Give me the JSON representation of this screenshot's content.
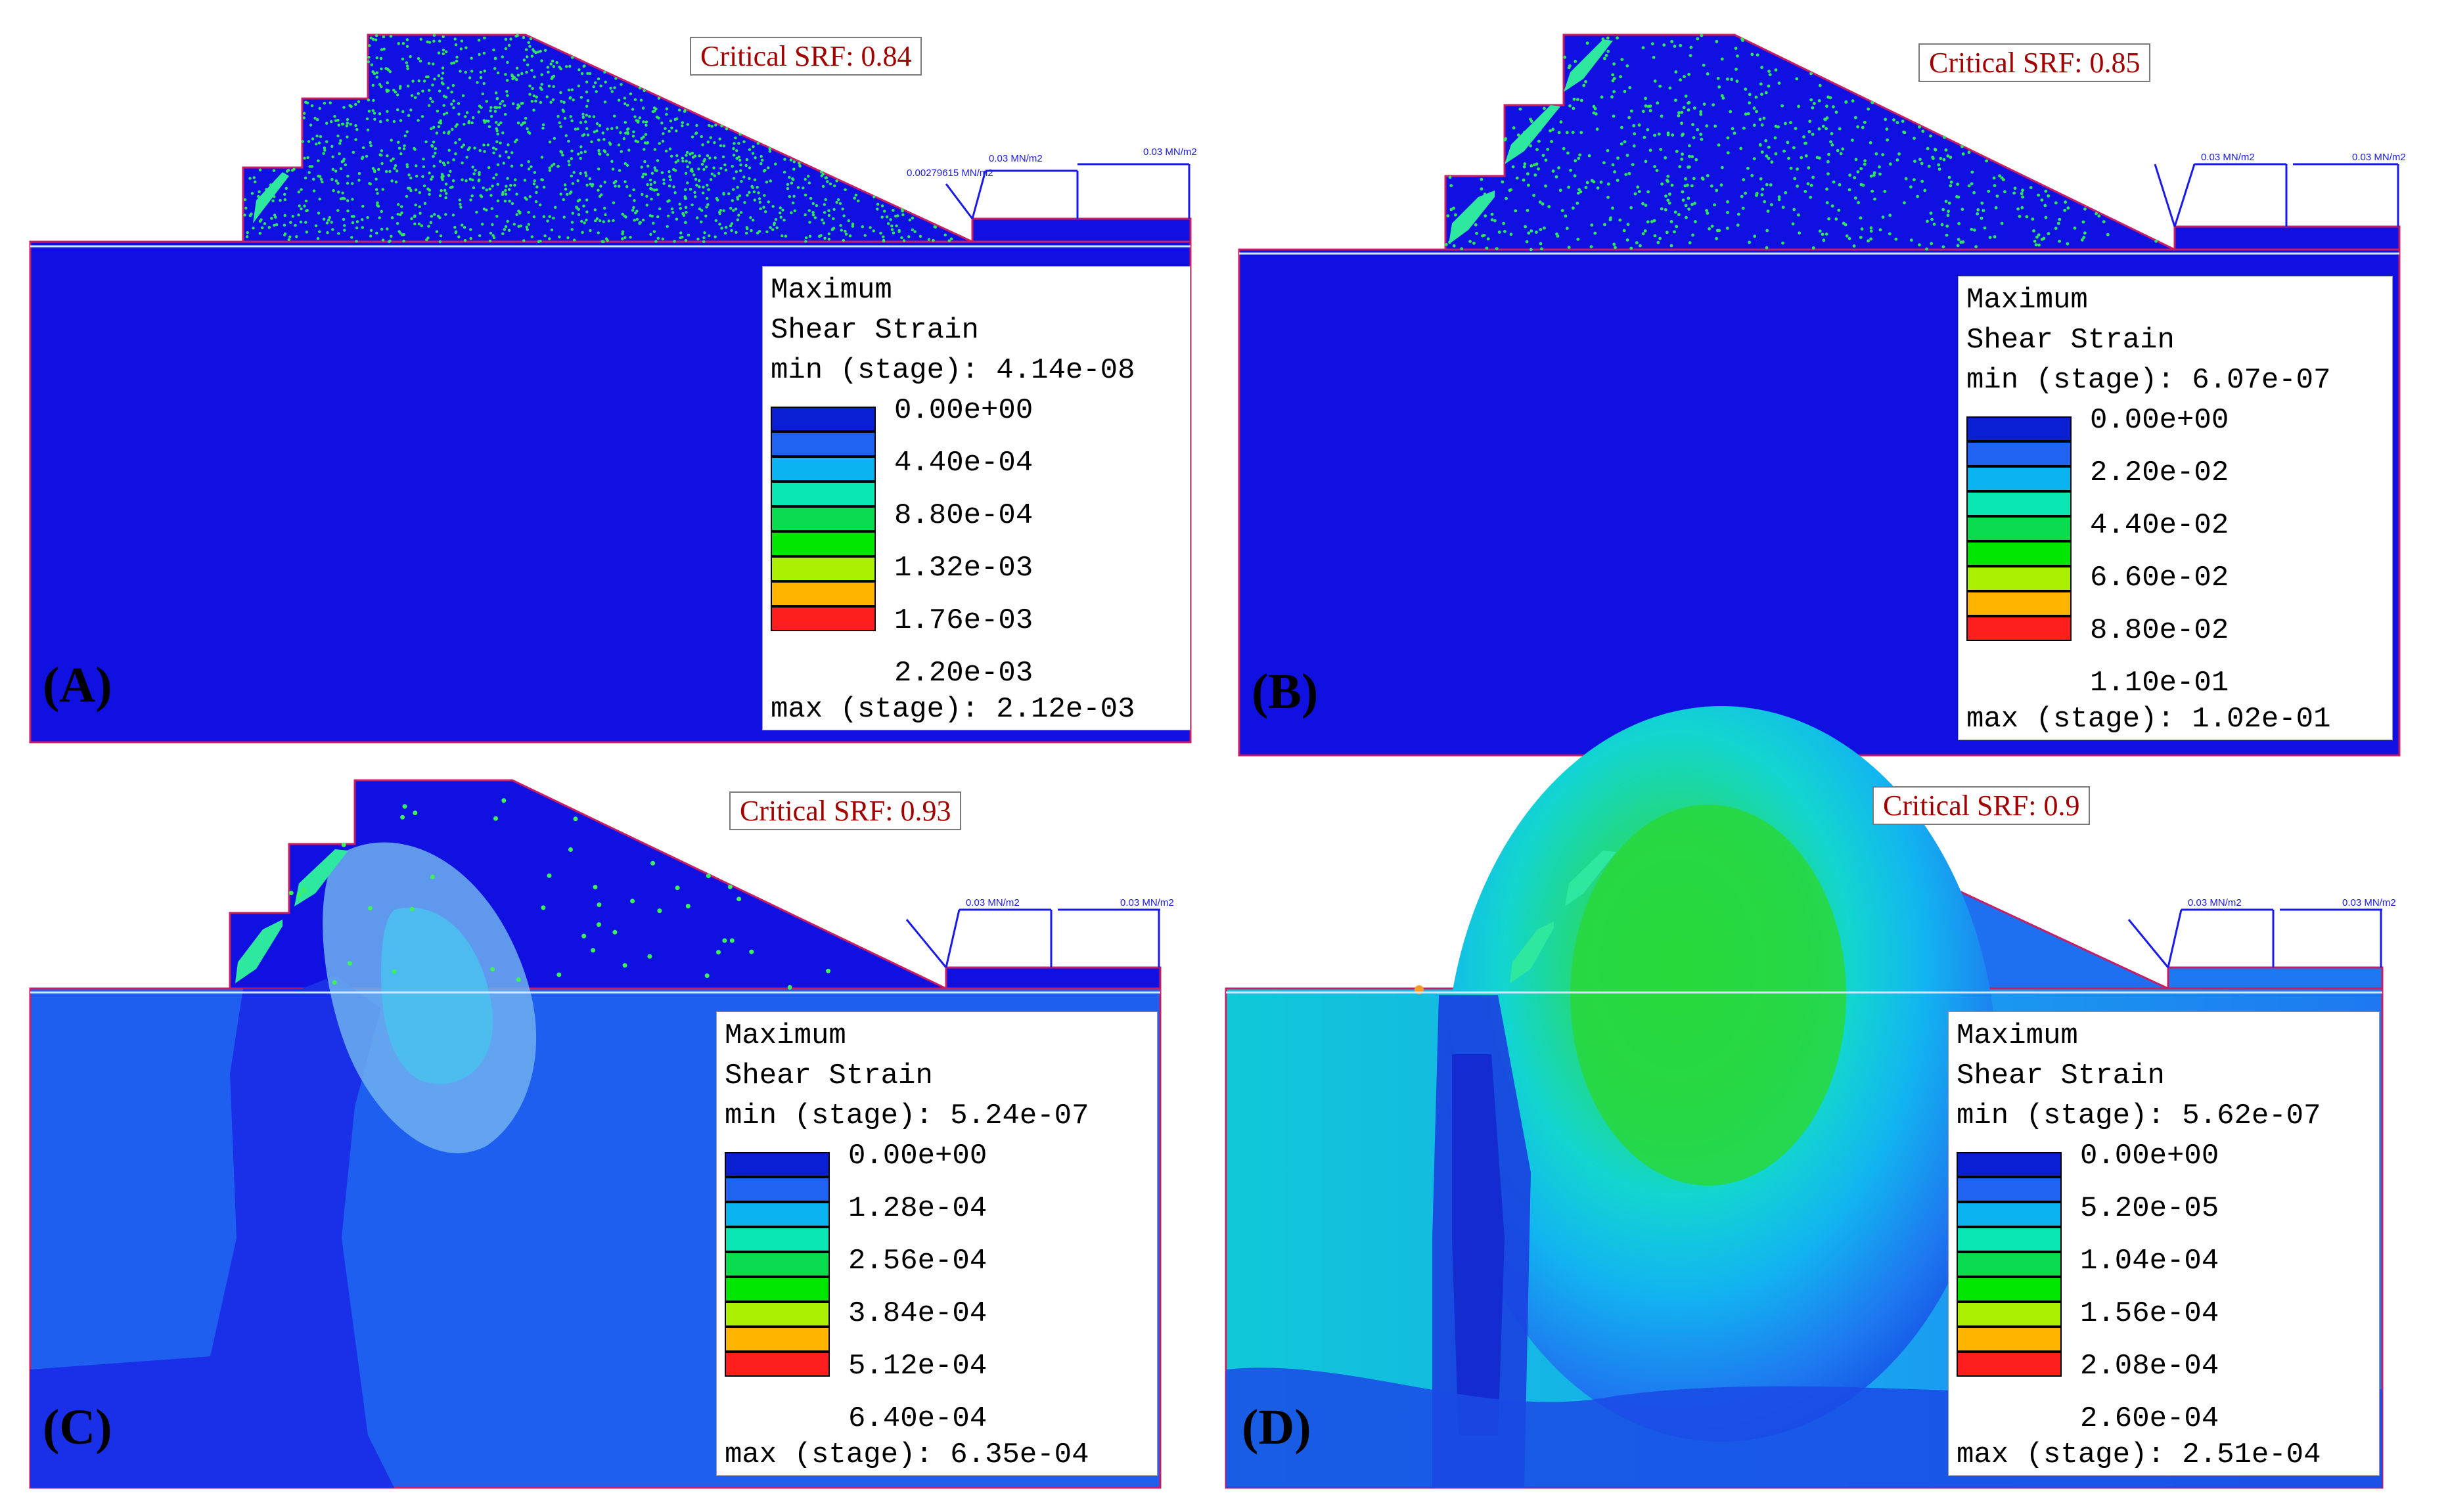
{
  "panels": [
    {
      "id": "A",
      "label": "(A)",
      "srf": "Critical SRF: 0.84",
      "loads": [
        "0.00279615 MN/m2",
        "0.03 MN/m2",
        "0.03 MN/m2"
      ],
      "legend": {
        "title1": "Maximum",
        "title2": "Shear Strain",
        "min": "min (stage): 4.14e-08",
        "ticks": [
          "0.00e+00",
          "4.40e-04",
          "8.80e-04",
          "1.32e-03",
          "1.76e-03",
          "2.20e-03"
        ],
        "max": "max (stage): 2.12e-03"
      },
      "fill": "#1010e0"
    },
    {
      "id": "B",
      "label": "(B)",
      "srf": "Critical SRF: 0.85",
      "loads": [
        "0.03 MN/m2",
        "0.03 MN/m2"
      ],
      "legend": {
        "title1": "Maximum",
        "title2": "Shear Strain",
        "min": "min (stage): 6.07e-07",
        "ticks": [
          "0.00e+00",
          "2.20e-02",
          "4.40e-02",
          "6.60e-02",
          "8.80e-02",
          "1.10e-01"
        ],
        "max": "max (stage): 1.02e-01"
      },
      "fill": "#1010e0"
    },
    {
      "id": "C",
      "label": "(C)",
      "srf": "Critical SRF: 0.93",
      "loads": [
        "0.03 MN/m2",
        "0.03 MN/m2"
      ],
      "legend": {
        "title1": "Maximum",
        "title2": "Shear Strain",
        "min": "min (stage): 5.24e-07",
        "ticks": [
          "0.00e+00",
          "1.28e-04",
          "2.56e-04",
          "3.84e-04",
          "5.12e-04",
          "6.40e-04"
        ],
        "max": "max (stage): 6.35e-04"
      },
      "fill": "#1f5ff0"
    },
    {
      "id": "D",
      "label": "(D)",
      "srf": "Critical SRF: 0.9",
      "loads": [
        "0.03 MN/m2",
        "0.03 MN/m2"
      ],
      "legend": {
        "title1": "Maximum",
        "title2": "Shear Strain",
        "min": "min (stage): 5.62e-07",
        "ticks": [
          "0.00e+00",
          "5.20e-05",
          "1.04e-04",
          "1.56e-04",
          "2.08e-04",
          "2.60e-04"
        ],
        "max": "max (stage): 2.51e-04"
      },
      "fill": "#1a6af0"
    }
  ],
  "colors": {
    "scale": [
      "#0a1ed2",
      "#1e64f0",
      "#0ab4f0",
      "#0ae6b4",
      "#0adc50",
      "#00e600",
      "#aaf000",
      "#ffb400",
      "#ff1e1e"
    ],
    "outline": "#c81e64",
    "water": "#d0e8ff",
    "load": "#1a1ae6"
  }
}
